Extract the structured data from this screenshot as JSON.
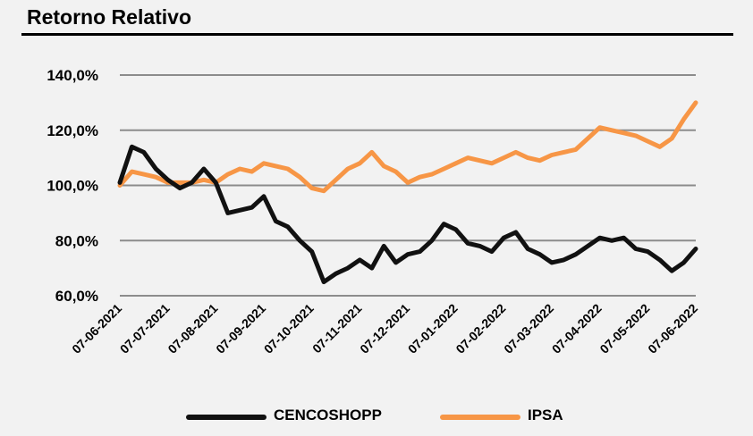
{
  "title": "Retorno Relativo",
  "chart_data": {
    "type": "line",
    "title": "Retorno Relativo",
    "xlabel": "",
    "ylabel": "",
    "ylim": [
      60,
      140
    ],
    "yticks": [
      60,
      80,
      100,
      120,
      140
    ],
    "ytick_labels": [
      "60,0%",
      "80,0%",
      "100,0%",
      "120,0%",
      "140,0%"
    ],
    "xtick_labels": [
      "07-06-2021",
      "07-07-2021",
      "07-08-2021",
      "07-09-2021",
      "07-10-2021",
      "07-11-2021",
      "07-12-2021",
      "07-01-2022",
      "07-02-2022",
      "07-03-2022",
      "07-04-2022",
      "07-05-2022",
      "07-06-2022"
    ],
    "x": [
      "07-06-2021",
      "14-06-2021",
      "21-06-2021",
      "28-06-2021",
      "07-07-2021",
      "14-07-2021",
      "21-07-2021",
      "28-07-2021",
      "07-08-2021",
      "14-08-2021",
      "21-08-2021",
      "28-08-2021",
      "07-09-2021",
      "14-09-2021",
      "21-09-2021",
      "28-09-2021",
      "07-10-2021",
      "14-10-2021",
      "21-10-2021",
      "28-10-2021",
      "07-11-2021",
      "14-11-2021",
      "21-11-2021",
      "28-11-2021",
      "07-12-2021",
      "14-12-2021",
      "21-12-2021",
      "28-12-2021",
      "07-01-2022",
      "14-01-2022",
      "21-01-2022",
      "28-01-2022",
      "07-02-2022",
      "14-02-2022",
      "21-02-2022",
      "28-02-2022",
      "07-03-2022",
      "14-03-2022",
      "21-03-2022",
      "28-03-2022",
      "07-04-2022",
      "14-04-2022",
      "21-04-2022",
      "28-04-2022",
      "07-05-2022",
      "14-05-2022",
      "21-05-2022",
      "28-05-2022",
      "07-06-2022"
    ],
    "grid": true,
    "legend_position": "bottom",
    "series": [
      {
        "name": "CENCOSHOPP",
        "color": "#111111",
        "values": [
          101,
          114,
          112,
          106,
          102,
          99,
          101,
          106,
          101,
          90,
          91,
          92,
          96,
          87,
          85,
          80,
          76,
          65,
          68,
          70,
          73,
          70,
          78,
          72,
          75,
          76,
          80,
          86,
          84,
          79,
          78,
          76,
          81,
          83,
          77,
          75,
          72,
          73,
          75,
          78,
          81,
          80,
          81,
          77,
          76,
          73,
          69,
          72,
          77
        ]
      },
      {
        "name": "IPSA",
        "color": "#f79646",
        "values": [
          100,
          105,
          104,
          103,
          101,
          101,
          101,
          102,
          101,
          104,
          106,
          105,
          108,
          107,
          106,
          103,
          99,
          98,
          102,
          106,
          108,
          112,
          107,
          105,
          101,
          103,
          104,
          106,
          108,
          110,
          109,
          108,
          110,
          112,
          110,
          109,
          111,
          112,
          113,
          117,
          121,
          120,
          119,
          118,
          116,
          114,
          117,
          124,
          130
        ]
      }
    ]
  }
}
